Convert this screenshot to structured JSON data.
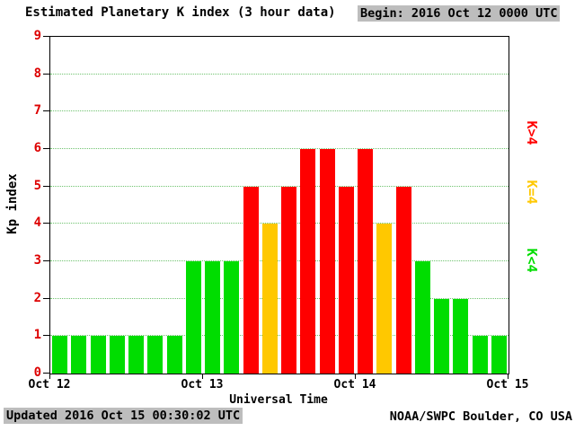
{
  "header": {
    "title": "Estimated Planetary K index (3 hour data)",
    "begin": "Begin: 2016 Oct 12 0000 UTC"
  },
  "footer": {
    "updated": "Updated 2016 Oct 15 00:30:02 UTC",
    "source": "NOAA/SWPC Boulder, CO USA"
  },
  "colors": {
    "bar_low": "#00dd00",
    "bar_mid": "#ffc800",
    "bar_high": "#ff0000",
    "y_tick_label": "#dd0000",
    "grid": "#3faf3f",
    "highlight_bg": "#bdbdbd"
  },
  "chart_data": {
    "type": "bar",
    "title": "Estimated Planetary K index (3 hour data)",
    "xlabel": "Universal Time",
    "ylabel": "Kp index",
    "ylim": [
      0,
      9
    ],
    "y_ticks": [
      0,
      1,
      2,
      3,
      4,
      5,
      6,
      7,
      8,
      9
    ],
    "x_tick_labels": [
      "Oct 12",
      "Oct 13",
      "Oct 14",
      "Oct 15"
    ],
    "bars_per_day": 8,
    "interval_hours": 3,
    "grid": true,
    "values": [
      1,
      1,
      1,
      1,
      1,
      1,
      1,
      3,
      3,
      3,
      5,
      4,
      5,
      6,
      6,
      5,
      6,
      4,
      5,
      3,
      2,
      2,
      1,
      1
    ],
    "color_rule": {
      "below_4": "#00dd00",
      "equal_4": "#ffc800",
      "above_4": "#ff0000"
    },
    "legend": [
      {
        "label": "K>4",
        "color": "#ff0000"
      },
      {
        "label": "K=4",
        "color": "#ffc800"
      },
      {
        "label": "K<4",
        "color": "#00dd00"
      }
    ],
    "legend_position": "right"
  }
}
